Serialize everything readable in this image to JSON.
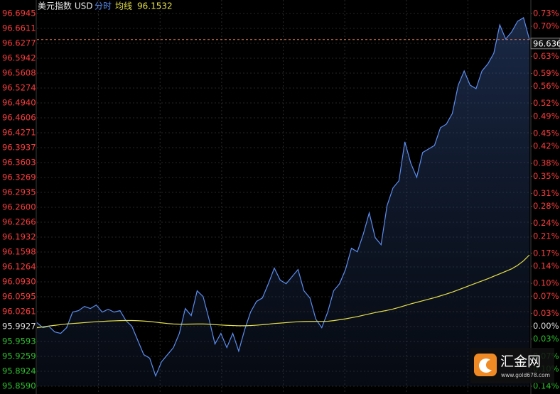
{
  "chart_data": {
    "type": "line",
    "title": "美元指数 USD",
    "legend_value": 96.1532,
    "current_price": 96.636,
    "series": [
      {
        "name": "分时",
        "color": "#5b8def",
        "values": [
          96.0013,
          95.9901,
          95.9933,
          95.9806,
          95.9774,
          95.9901,
          96.0251,
          96.0283,
          96.0378,
          96.0331,
          96.041,
          96.0251,
          96.0315,
          96.0251,
          96.0283,
          96.006,
          95.9933,
          95.9615,
          95.9297,
          95.9218,
          95.882,
          95.9138,
          95.9297,
          95.9456,
          95.9774,
          96.0331,
          96.0172,
          96.0728,
          96.0601,
          96.0092,
          95.9536,
          95.9774,
          95.9456,
          95.9774,
          95.9377,
          95.9854,
          96.0251,
          96.049,
          96.0569,
          96.0887,
          96.1237,
          96.0967,
          96.0887,
          96.1046,
          96.1205,
          96.0728,
          96.0569,
          96.0092,
          95.9901,
          96.0251,
          96.0728,
          96.0887,
          96.1205,
          96.1682,
          96.1603,
          96.2,
          96.2477,
          96.1921,
          96.1762,
          96.2636,
          96.3034,
          96.3193,
          96.4067,
          96.359,
          96.3272,
          96.3829,
          96.3908,
          96.3988,
          96.4385,
          96.4465,
          96.4703,
          96.5339,
          96.5657,
          96.5339,
          96.526,
          96.5657,
          96.5816,
          96.6055,
          96.6691,
          96.6373,
          96.6532,
          96.677,
          96.685,
          96.636
        ]
      },
      {
        "name": "均线",
        "color": "#e6e04a",
        "values": [
          95.9901,
          95.992,
          95.994,
          95.9955,
          95.997,
          95.9985,
          95.9995,
          96.0005,
          96.0015,
          96.0025,
          96.0035,
          96.0042,
          96.005,
          96.0055,
          96.006,
          96.0062,
          96.0062,
          96.0058,
          96.005,
          96.004,
          96.0025,
          96.001,
          95.9995,
          95.9985,
          95.998,
          95.998,
          95.9982,
          95.9985,
          95.9985,
          95.998,
          95.997,
          95.9962,
          95.9955,
          95.995,
          95.9945,
          95.9945,
          95.995,
          95.9958,
          95.9968,
          95.998,
          95.9995,
          96.0005,
          96.0015,
          96.0025,
          96.0035,
          96.004,
          96.0042,
          96.0042,
          96.004,
          96.0045,
          96.006,
          96.008,
          96.01,
          96.0125,
          96.015,
          96.018,
          96.021,
          96.024,
          96.0265,
          96.029,
          96.032,
          96.0355,
          96.0395,
          96.0435,
          96.047,
          96.0505,
          96.054,
          96.0575,
          96.0615,
          96.0655,
          96.07,
          96.075,
          96.08,
          96.085,
          96.09,
          96.095,
          96.1,
          96.1055,
          96.111,
          96.1165,
          96.122,
          96.13,
          96.14,
          96.1532
        ]
      }
    ],
    "ylim": [
      95.859,
      96.6945
    ],
    "yticks": [
      96.6945,
      96.6611,
      96.6277,
      96.5942,
      96.5608,
      96.5274,
      {
        "value": 96.494,
        "label": "96.4940"
      },
      96.4606,
      96.4271,
      96.3937,
      96.3603,
      96.3269,
      96.2935,
      {
        "value": 96.26,
        "label": "96.2600"
      },
      96.2266,
      96.1932,
      96.1598,
      96.1264,
      {
        "value": 96.093,
        "label": "96.0930"
      },
      96.0595,
      96.0261,
      95.9927,
      95.9593,
      95.9259,
      95.8924,
      {
        "value": 95.859,
        "label": "95.8590"
      }
    ],
    "y2lim": [
      -0.14,
      0.73
    ],
    "y2ticks": [
      {
        "value": 0.73,
        "label": "0.73%"
      },
      {
        "value": 0.7,
        "label": "0.70%"
      },
      {
        "value": 0.66,
        "label": "0.66%"
      },
      {
        "value": 0.63,
        "label": "0.63%"
      },
      {
        "value": 0.59,
        "label": "0.59%"
      },
      {
        "value": 0.56,
        "label": "0.56%"
      },
      {
        "value": 0.52,
        "label": "0.52%"
      },
      {
        "value": 0.49,
        "label": "0.49%"
      },
      {
        "value": 0.45,
        "label": "0.45%"
      },
      {
        "value": 0.42,
        "label": "0.42%"
      },
      {
        "value": 0.38,
        "label": "0.38%"
      },
      {
        "value": 0.35,
        "label": "0.35%"
      },
      {
        "value": 0.31,
        "label": "0.31%"
      },
      {
        "value": 0.28,
        "label": "0.28%"
      },
      {
        "value": 0.24,
        "label": "0.24%"
      },
      {
        "value": 0.21,
        "label": "0.21%"
      },
      {
        "value": 0.17,
        "label": "0.17%"
      },
      {
        "value": 0.14,
        "label": "0.14%"
      },
      {
        "value": 0.1,
        "label": "0.10%"
      },
      {
        "value": 0.07,
        "label": "0.07%"
      },
      {
        "value": 0.03,
        "label": "0.03%"
      },
      {
        "value": 0.0,
        "label": "0.00%"
      },
      {
        "value": -0.03,
        "label": "0.03%"
      },
      {
        "value": -0.07,
        "label": "0.07%"
      },
      {
        "value": -0.1,
        "label": "0.10%"
      },
      {
        "value": -0.14,
        "label": "0.14%"
      }
    ],
    "grid": true,
    "area": true,
    "up_color": "#ff3c3c",
    "down_color": "#2fc12f",
    "flat_color": "#e0e0e0",
    "watermark": {
      "name": "汇金网",
      "url": "www.gold678.com"
    }
  }
}
